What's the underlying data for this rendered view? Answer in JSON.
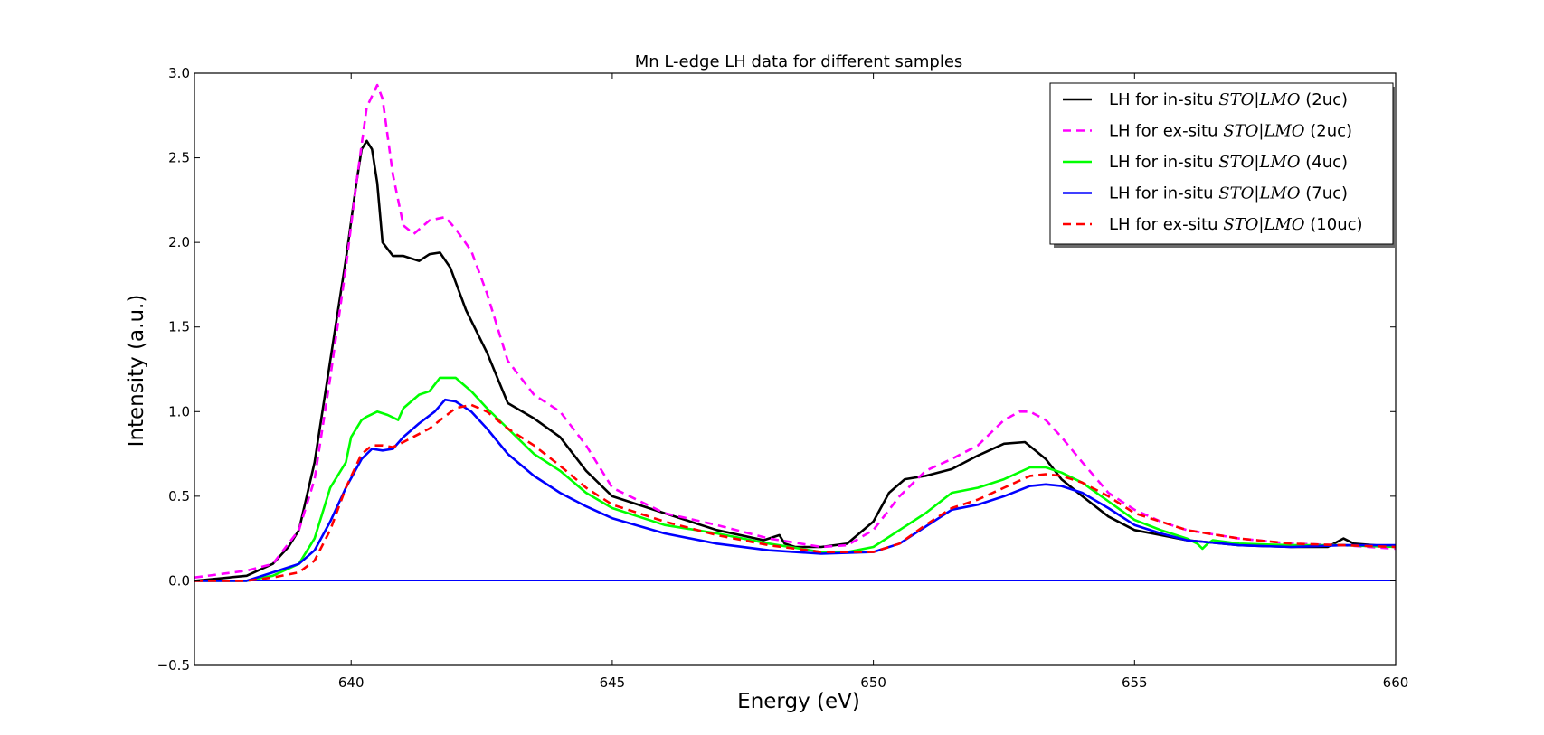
{
  "chart_data": {
    "type": "line",
    "title": "Mn L-edge LH data for different samples",
    "xlabel": "Energy (eV)",
    "ylabel": "Intensity (a.u.)",
    "xlim": [
      637,
      660
    ],
    "ylim": [
      -0.5,
      3.0
    ],
    "xticks": [
      640,
      645,
      650,
      655,
      660
    ],
    "yticks": [
      -0.5,
      0.0,
      0.5,
      1.0,
      1.5,
      2.0,
      2.5,
      3.0
    ],
    "xtick_labels": [
      "640",
      "645",
      "650",
      "655",
      "660"
    ],
    "ytick_labels": [
      "−0.5",
      "0.0",
      "0.5",
      "1.0",
      "1.5",
      "2.0",
      "2.5",
      "3.0"
    ],
    "grid": false,
    "legend_position": "top-right",
    "reference_line": {
      "y": 0.0,
      "color": "#0000ff"
    },
    "series": [
      {
        "name": "LH for in-situ STO|LMO (2uc)",
        "legend_prefix": "LH for in-situ ",
        "legend_math": "STO|LMO",
        "legend_suffix": " (2uc)",
        "color": "#000000",
        "dash": "solid",
        "x": [
          637.0,
          638.0,
          638.5,
          638.8,
          639.0,
          639.3,
          639.6,
          639.9,
          640.1,
          640.2,
          640.3,
          640.4,
          640.5,
          640.6,
          640.8,
          641.0,
          641.3,
          641.5,
          641.7,
          641.9,
          642.2,
          642.6,
          643.0,
          643.5,
          644.0,
          644.5,
          645.0,
          646.0,
          647.0,
          647.9,
          648.2,
          648.3,
          648.5,
          649.0,
          649.5,
          650.0,
          650.3,
          650.6,
          651.0,
          651.5,
          652.0,
          652.5,
          652.9,
          653.1,
          653.3,
          653.6,
          654.0,
          654.5,
          655.0,
          655.5,
          656.0,
          657.0,
          658.0,
          658.7,
          659.0,
          659.2,
          660.0
        ],
        "y": [
          0.0,
          0.03,
          0.1,
          0.2,
          0.3,
          0.7,
          1.3,
          1.9,
          2.35,
          2.55,
          2.6,
          2.55,
          2.35,
          2.0,
          1.92,
          1.92,
          1.89,
          1.93,
          1.94,
          1.85,
          1.6,
          1.35,
          1.05,
          0.96,
          0.85,
          0.65,
          0.5,
          0.4,
          0.3,
          0.24,
          0.27,
          0.22,
          0.2,
          0.2,
          0.22,
          0.35,
          0.52,
          0.6,
          0.62,
          0.66,
          0.74,
          0.81,
          0.82,
          0.77,
          0.72,
          0.6,
          0.5,
          0.38,
          0.3,
          0.27,
          0.24,
          0.21,
          0.2,
          0.2,
          0.25,
          0.22,
          0.2
        ]
      },
      {
        "name": "LH for ex-situ STO|LMO (2uc)",
        "legend_prefix": "LH for ex-situ ",
        "legend_math": "STO|LMO",
        "legend_suffix": " (2uc)",
        "color": "#ff00ff",
        "dash": "dashed",
        "x": [
          637.0,
          638.0,
          638.5,
          639.0,
          639.3,
          639.6,
          639.9,
          640.1,
          640.3,
          640.5,
          640.6,
          640.8,
          641.0,
          641.2,
          641.5,
          641.8,
          642.0,
          642.3,
          642.6,
          643.0,
          643.5,
          644.0,
          644.5,
          645.0,
          646.0,
          647.0,
          648.0,
          649.0,
          649.5,
          650.0,
          650.5,
          651.0,
          651.5,
          652.0,
          652.5,
          652.8,
          653.0,
          653.3,
          653.6,
          654.0,
          654.5,
          655.0,
          655.5,
          656.0,
          657.0,
          658.0,
          659.0,
          660.0
        ],
        "y": [
          0.02,
          0.06,
          0.1,
          0.3,
          0.6,
          1.2,
          1.85,
          2.35,
          2.8,
          2.93,
          2.85,
          2.4,
          2.1,
          2.05,
          2.13,
          2.15,
          2.08,
          1.95,
          1.7,
          1.3,
          1.1,
          1.0,
          0.8,
          0.55,
          0.4,
          0.33,
          0.25,
          0.2,
          0.21,
          0.3,
          0.5,
          0.65,
          0.72,
          0.8,
          0.95,
          1.0,
          1.0,
          0.95,
          0.85,
          0.7,
          0.52,
          0.42,
          0.35,
          0.3,
          0.25,
          0.22,
          0.21,
          0.19
        ]
      },
      {
        "name": "LH for in-situ STO|LMO (4uc)",
        "legend_prefix": "LH for in-situ ",
        "legend_math": "STO|LMO",
        "legend_suffix": " (4uc)",
        "color": "#00ff00",
        "dash": "solid",
        "x": [
          637.0,
          638.0,
          638.5,
          639.0,
          639.3,
          639.6,
          639.9,
          640.0,
          640.2,
          640.3,
          640.5,
          640.7,
          640.9,
          641.0,
          641.3,
          641.5,
          641.7,
          642.0,
          642.3,
          642.6,
          643.0,
          643.5,
          644.0,
          644.5,
          645.0,
          646.0,
          647.0,
          648.0,
          649.0,
          649.5,
          650.0,
          650.5,
          651.0,
          651.5,
          652.0,
          652.5,
          653.0,
          653.3,
          653.6,
          654.0,
          654.5,
          655.0,
          655.5,
          656.0,
          656.2,
          656.3,
          656.4,
          656.5,
          657.0,
          658.0,
          659.0,
          660.0
        ],
        "y": [
          0.0,
          0.0,
          0.03,
          0.1,
          0.25,
          0.55,
          0.7,
          0.85,
          0.95,
          0.97,
          1.0,
          0.98,
          0.95,
          1.02,
          1.1,
          1.12,
          1.2,
          1.2,
          1.12,
          1.02,
          0.9,
          0.75,
          0.65,
          0.52,
          0.43,
          0.33,
          0.28,
          0.22,
          0.17,
          0.17,
          0.2,
          0.3,
          0.4,
          0.52,
          0.55,
          0.6,
          0.67,
          0.67,
          0.64,
          0.58,
          0.47,
          0.36,
          0.3,
          0.25,
          0.22,
          0.19,
          0.22,
          0.24,
          0.22,
          0.21,
          0.21,
          0.2
        ]
      },
      {
        "name": "LH for in-situ STO|LMO (7uc)",
        "legend_prefix": "LH for in-situ ",
        "legend_math": "STO|LMO",
        "legend_suffix": " (7uc)",
        "color": "#0000ff",
        "dash": "solid",
        "x": [
          637.0,
          638.0,
          638.5,
          639.0,
          639.3,
          639.6,
          639.9,
          640.2,
          640.4,
          640.6,
          640.8,
          641.0,
          641.3,
          641.6,
          641.8,
          642.0,
          642.3,
          642.6,
          643.0,
          643.5,
          644.0,
          644.5,
          645.0,
          646.0,
          647.0,
          648.0,
          649.0,
          650.0,
          650.5,
          651.0,
          651.5,
          652.0,
          652.5,
          653.0,
          653.3,
          653.6,
          654.0,
          654.5,
          655.0,
          655.5,
          656.0,
          657.0,
          658.0,
          659.0,
          660.0
        ],
        "y": [
          0.0,
          0.0,
          0.05,
          0.1,
          0.18,
          0.35,
          0.55,
          0.72,
          0.78,
          0.77,
          0.78,
          0.85,
          0.93,
          1.0,
          1.07,
          1.06,
          1.0,
          0.9,
          0.75,
          0.62,
          0.52,
          0.44,
          0.37,
          0.28,
          0.22,
          0.18,
          0.16,
          0.17,
          0.22,
          0.32,
          0.42,
          0.45,
          0.5,
          0.56,
          0.57,
          0.56,
          0.52,
          0.43,
          0.33,
          0.28,
          0.24,
          0.21,
          0.2,
          0.21,
          0.21
        ]
      },
      {
        "name": "LH for ex-situ STO|LMO (10uc)",
        "legend_prefix": "LH for ex-situ ",
        "legend_math": "STO|LMO",
        "legend_suffix": " (10uc)",
        "color": "#ff0000",
        "dash": "dashed",
        "x": [
          637.0,
          638.0,
          638.5,
          639.0,
          639.3,
          639.6,
          639.9,
          640.2,
          640.4,
          640.6,
          640.8,
          641.0,
          641.5,
          642.0,
          642.3,
          642.6,
          643.0,
          643.5,
          644.0,
          644.5,
          645.0,
          646.0,
          647.0,
          648.0,
          649.0,
          650.0,
          650.5,
          651.0,
          651.5,
          652.0,
          652.5,
          653.0,
          653.3,
          653.6,
          654.0,
          654.5,
          655.0,
          655.5,
          656.0,
          657.0,
          658.0,
          659.0,
          660.0
        ],
        "y": [
          0.0,
          0.0,
          0.02,
          0.05,
          0.12,
          0.3,
          0.55,
          0.75,
          0.8,
          0.8,
          0.79,
          0.82,
          0.9,
          1.02,
          1.04,
          1.0,
          0.9,
          0.8,
          0.68,
          0.55,
          0.45,
          0.35,
          0.27,
          0.21,
          0.17,
          0.17,
          0.22,
          0.33,
          0.43,
          0.48,
          0.55,
          0.62,
          0.63,
          0.62,
          0.58,
          0.5,
          0.4,
          0.35,
          0.3,
          0.25,
          0.22,
          0.21,
          0.2
        ]
      }
    ]
  }
}
